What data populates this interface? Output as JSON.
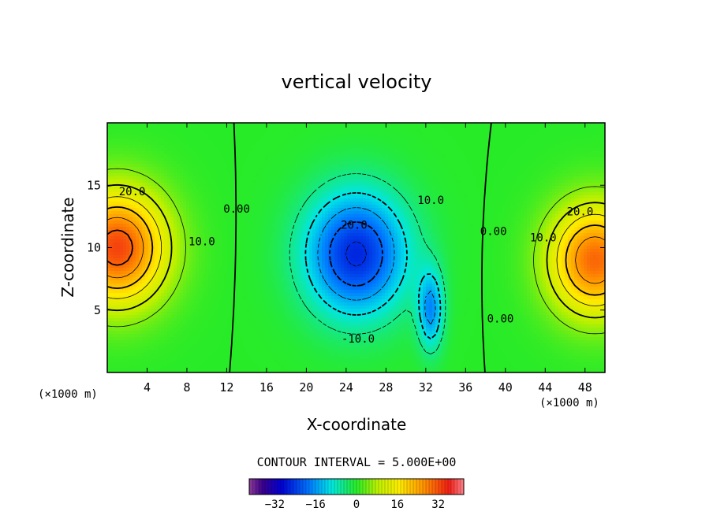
{
  "chart_data": {
    "type": "heatmap",
    "title": "vertical velocity",
    "xlabel": "X-coordinate",
    "ylabel": "Z-coordinate",
    "x_unit_label": "(×1000 m)",
    "z_unit_label": "(×1000 m)",
    "xlim": [
      0,
      50
    ],
    "ylim": [
      0,
      20
    ],
    "x_ticks": [
      4,
      8,
      12,
      16,
      20,
      24,
      28,
      32,
      36,
      40,
      44,
      48
    ],
    "y_ticks": [
      5,
      10,
      15
    ],
    "contour_interval_label": "CONTOUR INTERVAL = 5.000E+00",
    "colorbar": {
      "min": -42,
      "max": 42,
      "ticks": [
        -32,
        -16,
        0,
        16,
        32
      ]
    },
    "features": [
      {
        "sign": "positive",
        "x": 1,
        "z": 10,
        "peak": 33
      },
      {
        "sign": "negative",
        "x": 25,
        "z": 9.5,
        "peak": -26
      },
      {
        "sign": "negative",
        "x": 32.5,
        "z": 5,
        "peak": -16
      },
      {
        "sign": "positive",
        "x": 49,
        "z": 9,
        "peak": 30
      }
    ],
    "contour_labels": [
      {
        "text": "20.0",
        "x": 2.5,
        "z": 14.2
      },
      {
        "text": "10.0",
        "x": 9.5,
        "z": 10.2
      },
      {
        "text": "0.00",
        "x": 13.0,
        "z": 12.8
      },
      {
        "text": "20.0",
        "x": 24.8,
        "z": 11.5
      },
      {
        "text": "10.0",
        "x": 32.5,
        "z": 13.5
      },
      {
        "text": "-10.0",
        "x": 25.2,
        "z": 2.4
      },
      {
        "text": "0.00",
        "x": 38.8,
        "z": 11.0
      },
      {
        "text": "0.00",
        "x": 39.5,
        "z": 4.0
      },
      {
        "text": "10.0",
        "x": 43.8,
        "z": 10.5
      },
      {
        "text": "20.0",
        "x": 47.5,
        "z": 12.6
      }
    ]
  }
}
